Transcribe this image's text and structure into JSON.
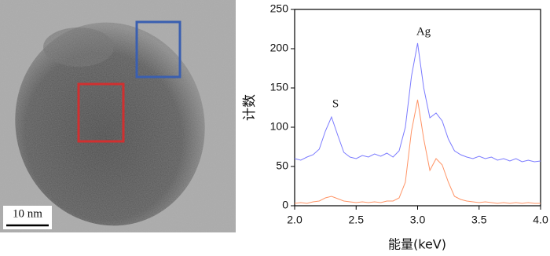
{
  "image": {
    "scale_bar": "10 nm"
  },
  "chart_data": {
    "type": "line",
    "x_label": "能量(keV)",
    "y_label": "计数",
    "annotations": [
      "S",
      "Ag"
    ],
    "x": [
      2.0,
      2.05,
      2.1,
      2.15,
      2.2,
      2.25,
      2.3,
      2.35,
      2.4,
      2.45,
      2.5,
      2.55,
      2.6,
      2.65,
      2.7,
      2.75,
      2.8,
      2.85,
      2.9,
      2.95,
      3.0,
      3.05,
      3.1,
      3.15,
      3.2,
      3.25,
      3.3,
      3.35,
      3.4,
      3.45,
      3.5,
      3.55,
      3.6,
      3.65,
      3.7,
      3.75,
      3.8,
      3.85,
      3.9,
      3.95,
      4.0
    ],
    "series": [
      {
        "color": "#7b7bff",
        "values": [
          60,
          58,
          62,
          65,
          72,
          95,
          113,
          90,
          68,
          62,
          60,
          64,
          62,
          66,
          63,
          67,
          62,
          70,
          100,
          165,
          207,
          150,
          112,
          118,
          108,
          85,
          70,
          65,
          62,
          60,
          63,
          60,
          62,
          58,
          60,
          57,
          60,
          56,
          58,
          56,
          57
        ]
      },
      {
        "color": "#ff9466",
        "values": [
          3,
          4,
          3,
          5,
          6,
          10,
          12,
          9,
          6,
          5,
          4,
          5,
          4,
          5,
          4,
          6,
          6,
          10,
          30,
          95,
          135,
          85,
          45,
          60,
          52,
          30,
          12,
          8,
          6,
          5,
          4,
          5,
          4,
          3,
          4,
          3,
          4,
          3,
          4,
          3,
          3
        ]
      }
    ],
    "xlim": [
      2.0,
      4.0
    ],
    "xticks": [
      {
        "value": 2.0,
        "label": "2.0"
      },
      {
        "value": 2.5,
        "label": "2.5"
      },
      {
        "value": 3.0,
        "label": "3.0"
      },
      {
        "value": 3.5,
        "label": "3.5"
      },
      {
        "value": 4.0,
        "label": "4.0"
      }
    ],
    "ylim": [
      0,
      250
    ],
    "yticks": [
      0,
      50,
      100,
      150,
      200,
      250
    ]
  }
}
